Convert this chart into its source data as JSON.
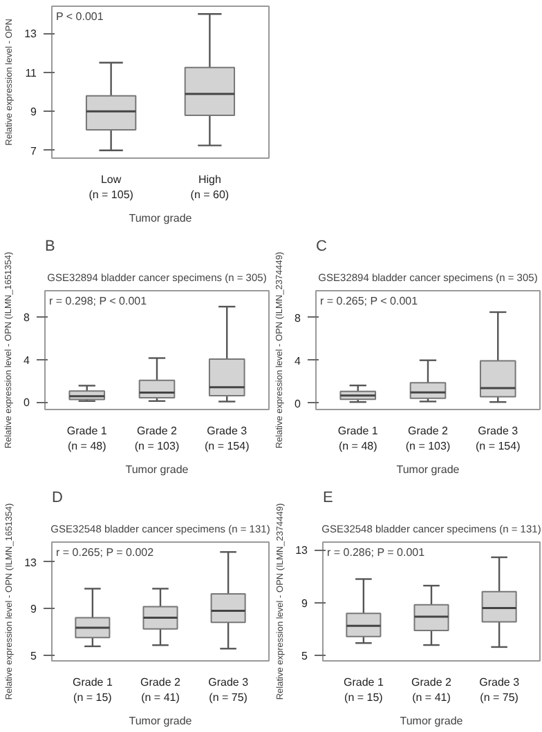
{
  "chart_data": [
    {
      "type": "box",
      "xlabel": "Tumor grade",
      "ylabel": "Relative expression level - OPN",
      "categories": [
        "Low\n(n = 105)",
        "High\n(n = 60)"
      ],
      "ylim": [
        6.6,
        14.4
      ],
      "yticks": [
        7,
        9,
        11,
        13
      ],
      "annotations": [
        "P < 0.001"
      ],
      "series": [
        {
          "color": "#d3d3d3",
          "boxes": [
            {
              "low": 7.0,
              "q1": 8.05,
              "median": 9.0,
              "q3": 9.8,
              "high": 11.5
            },
            {
              "low": 7.25,
              "q1": 8.8,
              "median": 9.9,
              "q3": 11.25,
              "high": 14.0
            }
          ]
        }
      ]
    },
    {
      "type": "box",
      "title": "GSE32894 bladder cancer specimens (n = 305)",
      "xlabel": "Tumor grade",
      "ylabel": "Relative expression level - OPN (ILMN_1651354)",
      "categories": [
        "Grade 1\n(n = 48)",
        "Grade 2\n(n = 103)",
        "Grade 3\n(n = 154)"
      ],
      "ylim": [
        -0.7,
        10.5
      ],
      "yticks": [
        0,
        4,
        8
      ],
      "annotations": [
        "B",
        "r = 0.298; P < 0.001"
      ],
      "series": [
        {
          "color": "#d3d3d3",
          "boxes": [
            {
              "low": 0.1,
              "q1": 0.25,
              "median": 0.55,
              "q3": 1.05,
              "high": 1.55
            },
            {
              "low": 0.1,
              "q1": 0.4,
              "median": 0.9,
              "q3": 2.05,
              "high": 4.15
            },
            {
              "low": 0.05,
              "q1": 0.6,
              "median": 1.4,
              "q3": 4.05,
              "high": 9.0
            }
          ]
        }
      ]
    },
    {
      "type": "box",
      "title": "GSE32894 bladder cancer specimens (n = 305)",
      "xlabel": "Tumor grade",
      "ylabel": "Relative expression level - OPN (ILMN_2374449)",
      "categories": [
        "Grade 1\n(n = 48)",
        "Grade 2\n(n = 103)",
        "Grade 3\n(n = 154)"
      ],
      "ylim": [
        -0.6,
        10.5
      ],
      "yticks": [
        0,
        4,
        8
      ],
      "annotations": [
        "C",
        "r = 0.265; P < 0.001"
      ],
      "series": [
        {
          "color": "#d3d3d3",
          "boxes": [
            {
              "low": 0.1,
              "q1": 0.35,
              "median": 0.7,
              "q3": 1.1,
              "high": 1.65
            },
            {
              "low": 0.15,
              "q1": 0.45,
              "median": 1.0,
              "q3": 1.9,
              "high": 4.0
            },
            {
              "low": 0.1,
              "q1": 0.6,
              "median": 1.4,
              "q3": 3.95,
              "high": 8.5
            }
          ]
        }
      ]
    },
    {
      "type": "box",
      "title": "GSE32548 bladder cancer specimens (n = 131)",
      "xlabel": "Tumor grade",
      "ylabel": "Relative expression level - OPN (ILMN_1651354)",
      "categories": [
        "Grade 1\n(n = 15)",
        "Grade 2\n(n = 41)",
        "Grade 3\n(n = 75)"
      ],
      "ylim": [
        4.5,
        14.7
      ],
      "yticks": [
        5,
        9,
        13
      ],
      "annotations": [
        "D",
        "r = 0.265; P = 0.002"
      ],
      "series": [
        {
          "color": "#d3d3d3",
          "boxes": [
            {
              "low": 5.75,
              "q1": 6.5,
              "median": 7.35,
              "q3": 8.2,
              "high": 10.7
            },
            {
              "low": 5.85,
              "q1": 7.25,
              "median": 8.2,
              "q3": 9.15,
              "high": 10.7
            },
            {
              "low": 5.55,
              "q1": 7.8,
              "median": 8.8,
              "q3": 10.25,
              "high": 13.85
            }
          ]
        }
      ]
    },
    {
      "type": "box",
      "title": "GSE32548 bladder cancer specimens (n = 131)",
      "xlabel": "Tumor grade",
      "ylabel": "Relative expression level - OPN (ILMN_2374449)",
      "categories": [
        "Grade 1\n(n = 15)",
        "Grade 2\n(n = 41)",
        "Grade 3\n(n = 75)"
      ],
      "ylim": [
        4.6,
        13.6
      ],
      "yticks": [
        5,
        9,
        13
      ],
      "annotations": [
        "E",
        "r = 0.286; P = 0.001"
      ],
      "series": [
        {
          "color": "#d3d3d3",
          "boxes": [
            {
              "low": 5.95,
              "q1": 6.45,
              "median": 7.25,
              "q3": 8.2,
              "high": 10.8
            },
            {
              "low": 5.8,
              "q1": 6.9,
              "median": 7.95,
              "q3": 8.85,
              "high": 10.3
            },
            {
              "low": 5.65,
              "q1": 7.55,
              "median": 8.6,
              "q3": 9.85,
              "high": 12.45
            }
          ]
        }
      ]
    }
  ]
}
